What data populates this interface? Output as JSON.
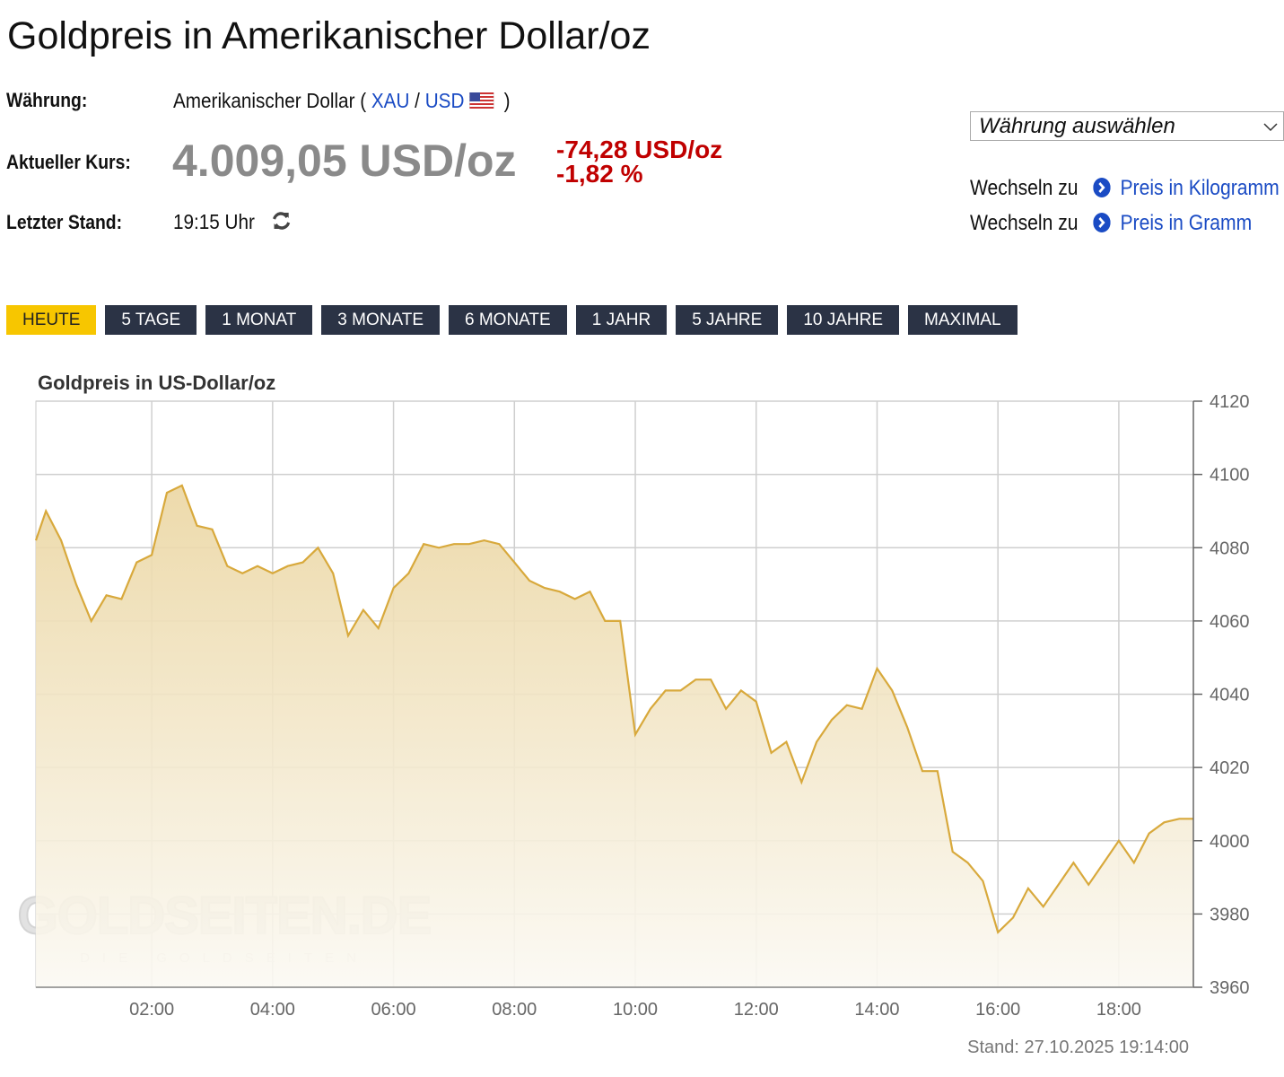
{
  "header": {
    "title": "Goldpreis in Amerikanischer Dollar/oz"
  },
  "info": {
    "currency_label": "Währung:",
    "currency_name": "Amerikanischer Dollar (",
    "code_from": "XAU",
    "separator": "/",
    "code_to": "USD",
    "close": ")",
    "price_label": "Aktueller Kurs:",
    "price": "4.009,05 USD/oz",
    "change_abs": "-74,28 USD/oz",
    "change_pct": "-1,82 %",
    "time_label": "Letzter Stand:",
    "time": "19:15 Uhr"
  },
  "sidebar": {
    "select": "Währung auswählen",
    "links": [
      {
        "prefix": "Wechseln zu",
        "label": "Preis in Kilogramm"
      },
      {
        "prefix": "Wechseln zu",
        "label": "Preis in Gramm"
      }
    ]
  },
  "tabs": [
    "HEUTE",
    "5 TAGE",
    "1 MONAT",
    "3 MONATE",
    "6 MONATE",
    "1 JAHR",
    "5 JAHRE",
    "10 JAHRE",
    "MAXIMAL"
  ],
  "chart_data": {
    "type": "area",
    "title": "Goldpreis in US-Dollar/oz",
    "x": [
      "00:05",
      "00:15",
      "00:30",
      "00:45",
      "01:00",
      "01:15",
      "01:30",
      "01:45",
      "02:00",
      "02:15",
      "02:30",
      "02:45",
      "03:00",
      "03:15",
      "03:30",
      "03:45",
      "04:00",
      "04:15",
      "04:30",
      "04:45",
      "05:00",
      "05:15",
      "05:30",
      "05:45",
      "06:00",
      "06:15",
      "06:30",
      "06:45",
      "07:00",
      "07:15",
      "07:30",
      "07:45",
      "08:00",
      "08:15",
      "08:30",
      "08:45",
      "09:00",
      "09:15",
      "09:30",
      "09:45",
      "10:00",
      "10:15",
      "10:30",
      "10:45",
      "11:00",
      "11:15",
      "11:30",
      "11:45",
      "12:00",
      "12:15",
      "12:30",
      "12:45",
      "13:00",
      "13:15",
      "13:30",
      "13:45",
      "14:00",
      "14:15",
      "14:30",
      "14:45",
      "15:00",
      "15:15",
      "15:30",
      "15:45",
      "16:00",
      "16:15",
      "16:30",
      "16:45",
      "17:00",
      "17:15",
      "17:30",
      "17:45",
      "18:00",
      "18:15",
      "18:30",
      "18:45",
      "19:00",
      "19:14"
    ],
    "values": [
      4082,
      4090,
      4082,
      4070,
      4060,
      4067,
      4066,
      4076,
      4078,
      4095,
      4097,
      4086,
      4085,
      4075,
      4073,
      4075,
      4073,
      4075,
      4076,
      4080,
      4073,
      4056,
      4063,
      4058,
      4069,
      4073,
      4081,
      4080,
      4081,
      4081,
      4082,
      4081,
      4076,
      4071,
      4069,
      4068,
      4066,
      4068,
      4060,
      4060,
      4029,
      4036,
      4041,
      4041,
      4044,
      4044,
      4036,
      4041,
      4038,
      4024,
      4027,
      4016,
      4027,
      4033,
      4037,
      4036,
      4047,
      4041,
      4031,
      4019,
      4019,
      3997,
      3994,
      3989,
      3975,
      3979,
      3987,
      3982,
      3988,
      3994,
      3988,
      3994,
      4000,
      3994,
      4002,
      4005,
      4006,
      4006
    ],
    "color": "#d8a93c",
    "xlim": [
      "00:05",
      "19:14"
    ],
    "xticks": [
      "02:00",
      "04:00",
      "06:00",
      "08:00",
      "10:00",
      "12:00",
      "14:00",
      "16:00",
      "18:00"
    ],
    "ylim": [
      3960,
      4120
    ],
    "yticks": [
      3960,
      3980,
      4000,
      4020,
      4040,
      4060,
      4080,
      4100,
      4120
    ],
    "grid": true,
    "footer": "Stand: 27.10.2025 19:14:00",
    "watermark": "GOLDSEITEN.DE",
    "watermark_sub": "DIE GOLDSEITEN"
  }
}
